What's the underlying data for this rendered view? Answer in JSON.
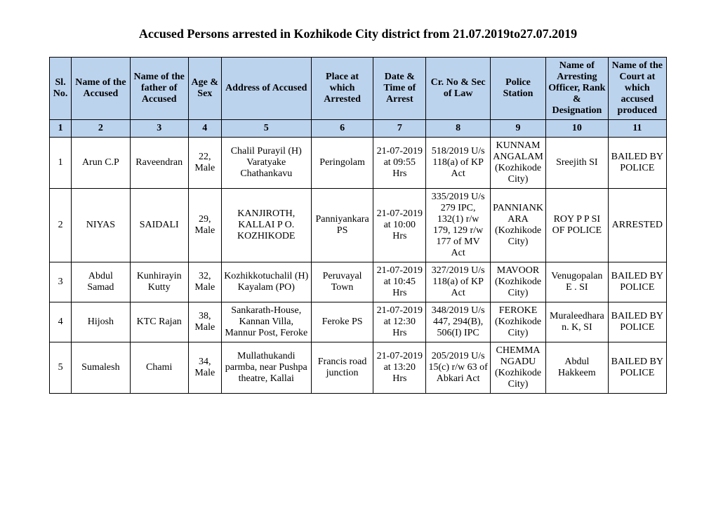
{
  "title": "Accused Persons arrested in   Kozhikode City   district from   21.07.2019to27.07.2019",
  "headers": [
    "Sl. No.",
    "Name of the Accused",
    "Name of the father of Accused",
    "Age & Sex",
    "Address of Accused",
    "Place at which Arrested",
    "Date & Time of Arrest",
    "Cr. No & Sec of Law",
    "Police Station",
    "Name of Arresting Officer, Rank & Designation",
    "Name of the Court at which accused produced"
  ],
  "numrow": [
    "1",
    "2",
    "3",
    "4",
    "5",
    "6",
    "7",
    "8",
    "9",
    "10",
    "11"
  ],
  "rows": [
    {
      "sl": "1",
      "name": "Arun C.P",
      "father": "Raveendran",
      "age": "22, Male",
      "address": "Chalil Purayil (H) Varatyake Chathankavu",
      "place": "Peringolam",
      "datetime": "21-07-2019 at 09:55 Hrs",
      "crno": "518/2019 U/s 118(a) of KP Act",
      "station": "KUNNAMANGALAM (Kozhikode City)",
      "officer": "Sreejith SI",
      "court": "BAILED BY POLICE"
    },
    {
      "sl": "2",
      "name": "NIYAS",
      "father": "SAIDALI",
      "age": "29, Male",
      "address": "KANJIROTH, KALLAI P O. KOZHIKODE",
      "place": "Panniyankara PS",
      "datetime": "21-07-2019 at 10:00 Hrs",
      "crno": "335/2019 U/s 279 IPC, 132(1) r/w 179, 129 r/w 177 of MV Act",
      "station": "PANNIANKARA (Kozhikode City)",
      "officer": "ROY P P SI OF POLICE",
      "court": "ARRESTED"
    },
    {
      "sl": "3",
      "name": "Abdul Samad",
      "father": "Kunhirayin Kutty",
      "age": "32, Male",
      "address": "Kozhikkotuchalil (H) Kayalam (PO)",
      "place": "Peruvayal Town",
      "datetime": "21-07-2019 at 10:45 Hrs",
      "crno": "327/2019 U/s 118(a) of KP Act",
      "station": "MAVOOR (Kozhikode City)",
      "officer": "Venugopalan E . SI",
      "court": "BAILED BY POLICE"
    },
    {
      "sl": "4",
      "name": "Hijosh",
      "father": "KTC Rajan",
      "age": "38, Male",
      "address": "Sankarath-House, Kannan Villa, Mannur Post, Feroke",
      "place": "Feroke PS",
      "datetime": "21-07-2019 at 12:30 Hrs",
      "crno": "348/2019 U/s 447, 294(B), 506(I) IPC",
      "station": "FEROKE (Kozhikode City)",
      "officer": "Muraleedharan. K, SI",
      "court": "BAILED BY POLICE"
    },
    {
      "sl": "5",
      "name": "Sumalesh",
      "father": "Chami",
      "age": "34, Male",
      "address": "Mullathukandi parmba, near Pushpa theatre, Kallai",
      "place": "Francis road junction",
      "datetime": "21-07-2019 at 13:20 Hrs",
      "crno": "205/2019 U/s 15(c) r/w 63 of Abkari Act",
      "station": "CHEMMANGADU (Kozhikode City)",
      "officer": "Abdul Hakkeem",
      "court": "BAILED BY POLICE"
    }
  ]
}
